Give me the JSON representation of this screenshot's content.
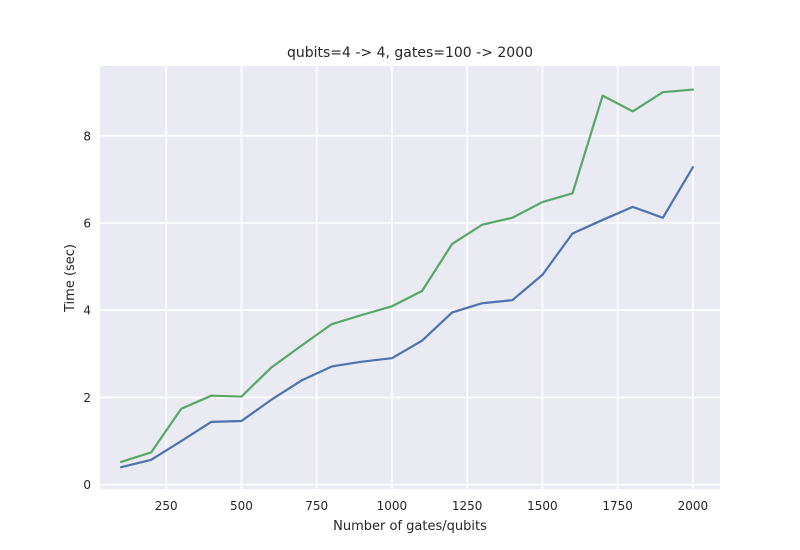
{
  "chart_data": {
    "type": "line",
    "title": "qubits=4 -> 4, gates=100 -> 2000",
    "xlabel": "Number of gates/qubits",
    "ylabel": "Time (sec)",
    "xlim": [
      30,
      2090
    ],
    "ylim": [
      -0.1,
      9.6
    ],
    "xticks": [
      250,
      500,
      750,
      1000,
      1250,
      1500,
      1750,
      2000
    ],
    "yticks": [
      0,
      2,
      4,
      6,
      8
    ],
    "grid": true,
    "x": [
      100,
      200,
      300,
      400,
      500,
      600,
      700,
      800,
      900,
      1000,
      1100,
      1200,
      1300,
      1400,
      1500,
      1600,
      1700,
      1800,
      1900,
      2000
    ],
    "series": [
      {
        "color": "#4c72b0",
        "values": [
          0.4,
          0.57,
          1.0,
          1.44,
          1.46,
          1.95,
          2.39,
          2.71,
          2.82,
          2.9,
          3.3,
          3.95,
          4.16,
          4.23,
          4.81,
          5.76,
          6.07,
          6.37,
          6.12,
          7.28
        ]
      },
      {
        "color": "#55a868",
        "values": [
          0.52,
          0.74,
          1.74,
          2.04,
          2.02,
          2.69,
          3.19,
          3.68,
          3.89,
          4.09,
          4.44,
          5.52,
          5.96,
          6.12,
          6.48,
          6.68,
          8.92,
          8.56,
          9.0,
          9.06
        ]
      }
    ]
  }
}
